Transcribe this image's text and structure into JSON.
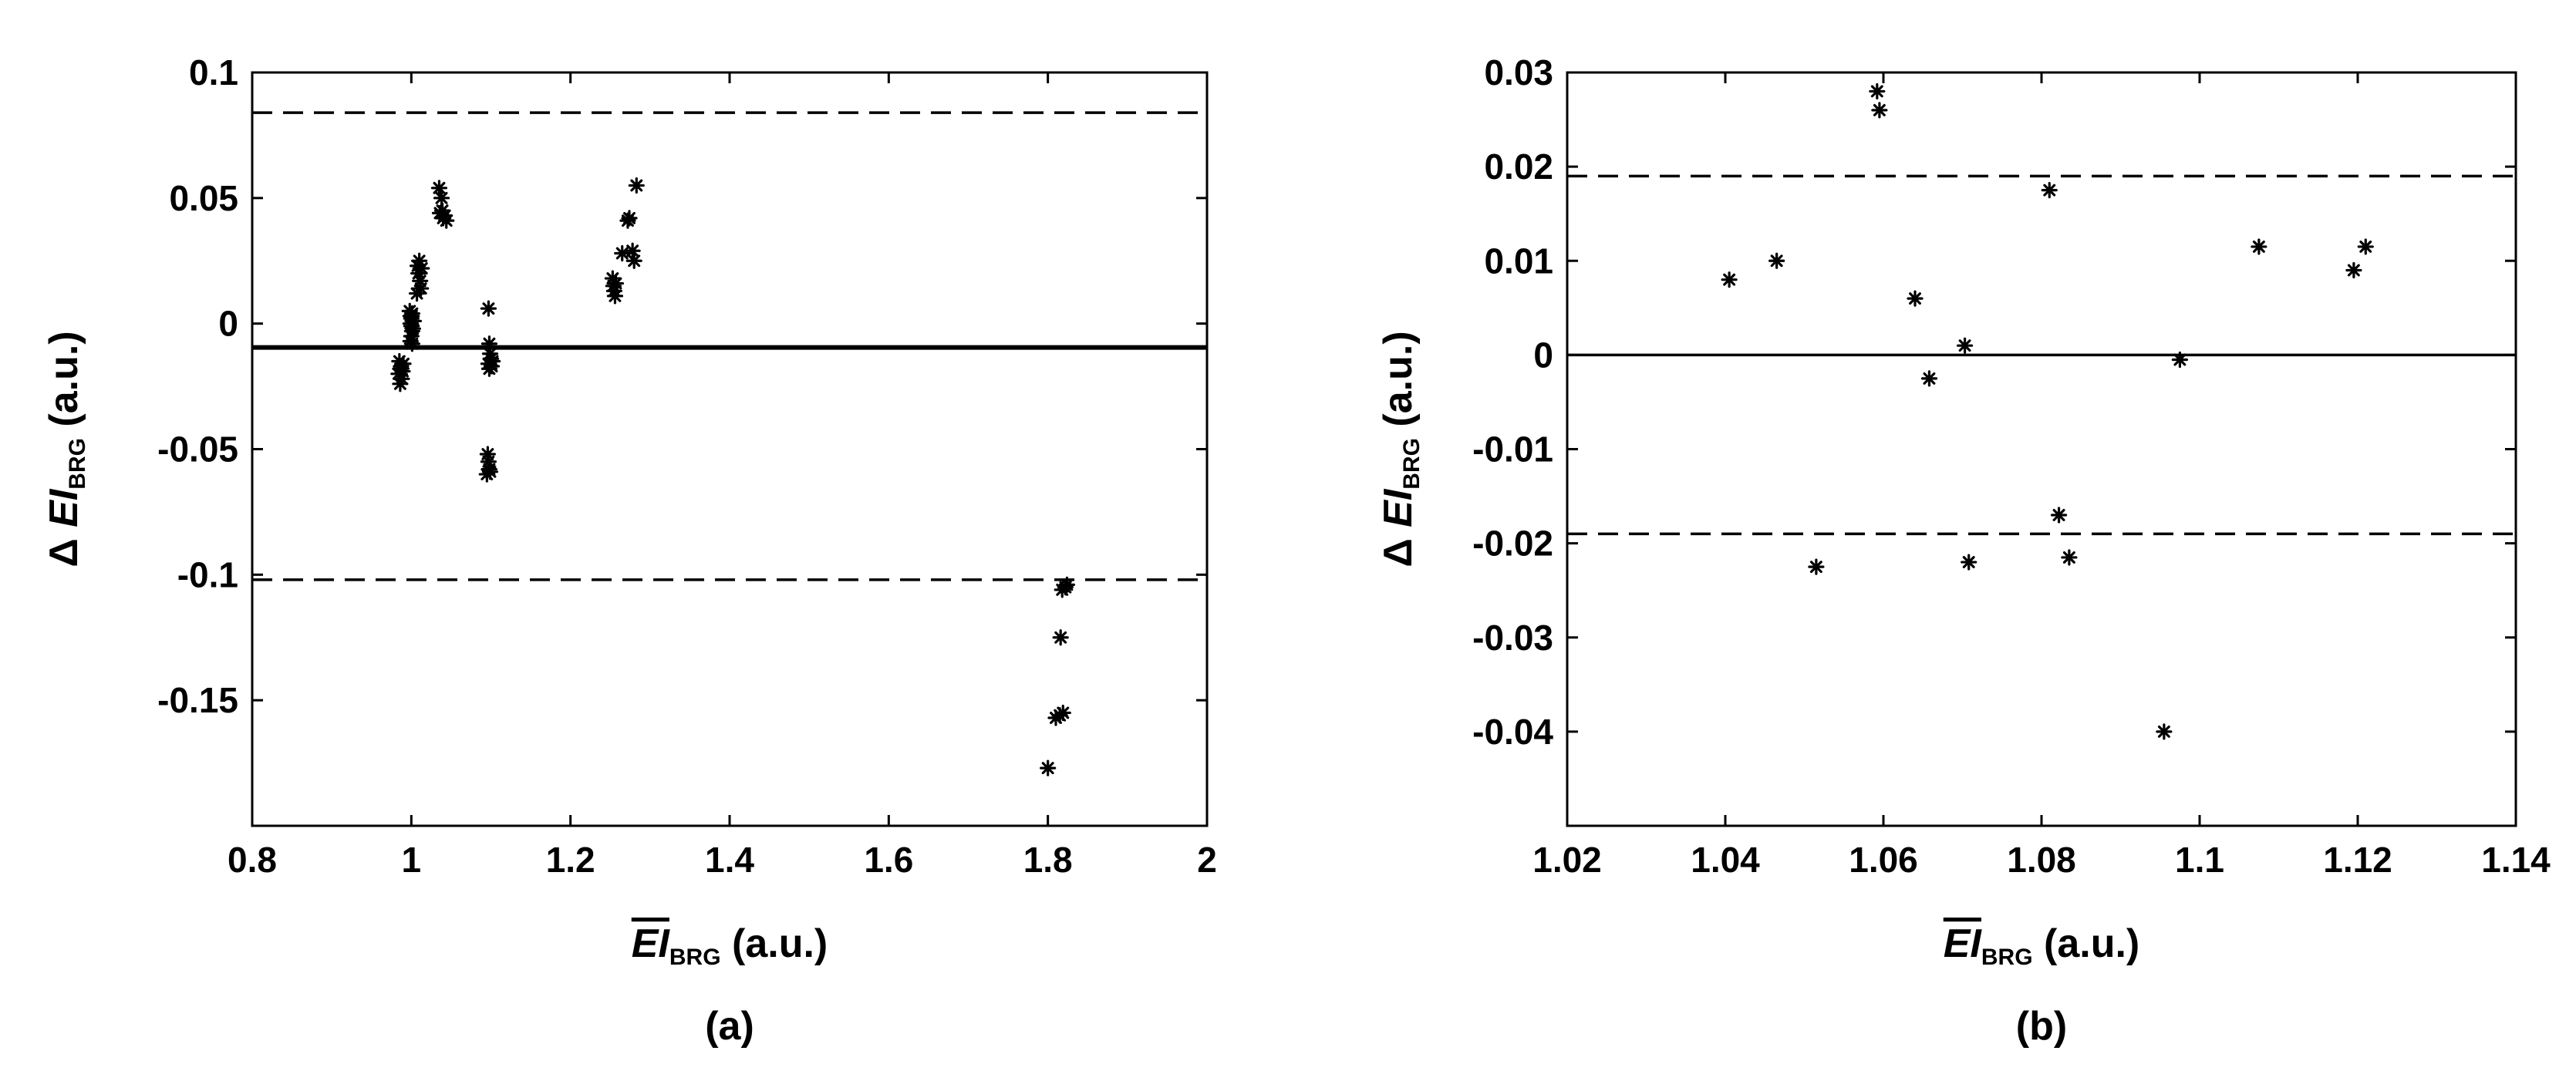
{
  "chart_data": [
    {
      "type": "scatter",
      "panel_label": "(a)",
      "xlabel": {
        "symbol": "EI",
        "subscript": "BRG",
        "unit": "(a.u.)"
      },
      "ylabel": {
        "prefix": "Δ",
        "symbol": "EI",
        "subscript": "BRG",
        "unit": "(a.u.)"
      },
      "xlim": [
        0.8,
        2.0
      ],
      "ylim": [
        -0.2,
        0.1
      ],
      "xticks": [
        0.8,
        1.0,
        1.2,
        1.4,
        1.6,
        1.8,
        2.0
      ],
      "xticklabels": [
        "0.8",
        "1",
        "1.2",
        "1.4",
        "1.6",
        "1.8",
        "2"
      ],
      "yticks": [
        -0.15,
        -0.1,
        -0.05,
        0,
        0.05,
        0.1
      ],
      "yticklabels": [
        "-0.15",
        "-0.1",
        "-0.05",
        "0",
        "0.05",
        "0.1"
      ],
      "grid": false,
      "marker": "*",
      "reference_lines": [
        {
          "y": -0.0095,
          "style": "solid"
        },
        {
          "y": 0.084,
          "style": "dashed"
        },
        {
          "y": -0.102,
          "style": "dashed"
        }
      ],
      "points": [
        [
          0.985,
          -0.015
        ],
        [
          0.986,
          -0.018
        ],
        [
          0.984,
          -0.02
        ],
        [
          0.987,
          -0.017
        ],
        [
          0.986,
          -0.024
        ],
        [
          0.988,
          -0.022
        ],
        [
          0.989,
          -0.019
        ],
        [
          0.99,
          -0.016
        ],
        [
          0.998,
          0.005
        ],
        [
          0.999,
          0.003
        ],
        [
          1.0,
          0.002
        ],
        [
          1.001,
          0.004
        ],
        [
          0.999,
          0.0
        ],
        [
          1.0,
          -0.001
        ],
        [
          1.001,
          -0.003
        ],
        [
          1.0,
          -0.005
        ],
        [
          0.999,
          -0.007
        ],
        [
          1.001,
          -0.008
        ],
        [
          1.002,
          -0.002
        ],
        [
          1.003,
          0.001
        ],
        [
          1.008,
          0.023
        ],
        [
          1.01,
          0.025
        ],
        [
          1.009,
          0.02
        ],
        [
          1.011,
          0.017
        ],
        [
          1.012,
          0.014
        ],
        [
          1.013,
          0.022
        ],
        [
          1.007,
          0.012
        ],
        [
          1.035,
          0.054
        ],
        [
          1.038,
          0.05
        ],
        [
          1.036,
          0.044
        ],
        [
          1.04,
          0.042
        ],
        [
          1.042,
          0.043
        ],
        [
          1.044,
          0.041
        ],
        [
          1.039,
          0.045
        ],
        [
          1.097,
          0.006
        ],
        [
          1.098,
          -0.008
        ],
        [
          1.099,
          -0.012
        ],
        [
          1.1,
          -0.014
        ],
        [
          1.097,
          -0.016
        ],
        [
          1.101,
          -0.017
        ],
        [
          1.102,
          -0.015
        ],
        [
          1.098,
          -0.018
        ],
        [
          1.096,
          -0.052
        ],
        [
          1.097,
          -0.055
        ],
        [
          1.098,
          -0.058
        ],
        [
          1.095,
          -0.06
        ],
        [
          1.099,
          -0.059
        ],
        [
          1.253,
          0.018
        ],
        [
          1.255,
          0.013
        ],
        [
          1.256,
          0.011
        ],
        [
          1.254,
          0.015
        ],
        [
          1.257,
          0.016
        ],
        [
          1.265,
          0.028
        ],
        [
          1.272,
          0.041
        ],
        [
          1.274,
          0.042
        ],
        [
          1.278,
          0.029
        ],
        [
          1.28,
          0.025
        ],
        [
          1.283,
          0.055
        ],
        [
          1.8,
          -0.177
        ],
        [
          1.81,
          -0.157
        ],
        [
          1.815,
          -0.156
        ],
        [
          1.819,
          -0.155
        ],
        [
          1.816,
          -0.125
        ],
        [
          1.818,
          -0.106
        ],
        [
          1.822,
          -0.105
        ],
        [
          1.824,
          -0.104
        ]
      ]
    },
    {
      "type": "scatter",
      "panel_label": "(b)",
      "xlabel": {
        "symbol": "EI",
        "subscript": "BRG",
        "unit": "(a.u.)"
      },
      "ylabel": {
        "prefix": "Δ",
        "symbol": "EI",
        "subscript": "BRG",
        "unit": "(a.u.)"
      },
      "xlim": [
        1.02,
        1.14
      ],
      "ylim": [
        -0.05,
        0.03
      ],
      "xticks": [
        1.02,
        1.04,
        1.06,
        1.08,
        1.1,
        1.12,
        1.14
      ],
      "xticklabels": [
        "1.02",
        "1.04",
        "1.06",
        "1.08",
        "1.1",
        "1.12",
        "1.14"
      ],
      "yticks": [
        -0.04,
        -0.03,
        -0.02,
        -0.01,
        0,
        0.01,
        0.02,
        0.03
      ],
      "yticklabels": [
        "-0.04",
        "-0.03",
        "-0.02",
        "-0.01",
        "0",
        "0.01",
        "0.02",
        "0.03"
      ],
      "grid": false,
      "marker": "*",
      "reference_lines": [
        {
          "y": 0.0,
          "style": "solid"
        },
        {
          "y": 0.019,
          "style": "dashed"
        },
        {
          "y": -0.019,
          "style": "dashed"
        }
      ],
      "points": [
        [
          1.0405,
          0.008
        ],
        [
          1.0465,
          0.01
        ],
        [
          1.0515,
          -0.0225
        ],
        [
          1.0592,
          0.028
        ],
        [
          1.0595,
          0.026
        ],
        [
          1.064,
          0.006
        ],
        [
          1.0658,
          -0.0025
        ],
        [
          1.0703,
          0.001
        ],
        [
          1.0708,
          -0.022
        ],
        [
          1.081,
          0.0175
        ],
        [
          1.0822,
          -0.017
        ],
        [
          1.0835,
          -0.0215
        ],
        [
          1.0955,
          -0.04
        ],
        [
          1.0975,
          -0.0005
        ],
        [
          1.1075,
          0.0115
        ],
        [
          1.1195,
          0.009
        ],
        [
          1.121,
          0.0115
        ]
      ]
    }
  ]
}
